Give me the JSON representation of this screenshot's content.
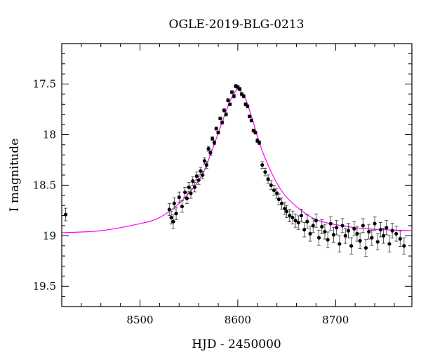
{
  "chart_data": {
    "type": "scatter",
    "title": "OGLE-2019-BLG-0213",
    "xlabel": "HJD - 2450000",
    "ylabel": "I magnitude",
    "xlim": [
      8420,
      8778
    ],
    "ylim": [
      19.7,
      17.1
    ],
    "y_inverted": true,
    "x_ticks": [
      8500,
      8600,
      8700
    ],
    "x_tick_labels": [
      "8500",
      "8600",
      "8700"
    ],
    "y_ticks": [
      17.5,
      18,
      18.5,
      19,
      19.5
    ],
    "y_tick_labels": [
      "17.5",
      "18",
      "18.5",
      "19",
      "19.5"
    ],
    "grid": false,
    "legend": "none",
    "colors": {
      "points": "#000000",
      "model": "#ff00ff",
      "frame": "#000000"
    },
    "model_curve": {
      "name": "",
      "type": "line",
      "x": [
        8420,
        8460,
        8500,
        8520,
        8540,
        8555,
        8565,
        8575,
        8585,
        8592,
        8597,
        8600,
        8603,
        8608,
        8615,
        8622,
        8630,
        8640,
        8650,
        8665,
        8680,
        8700,
        8730,
        8778
      ],
      "y": [
        18.97,
        18.95,
        18.88,
        18.82,
        18.68,
        18.52,
        18.37,
        18.12,
        17.85,
        17.67,
        17.58,
        17.55,
        17.57,
        17.65,
        17.85,
        18.08,
        18.28,
        18.48,
        18.62,
        18.75,
        18.84,
        18.89,
        18.93,
        18.95
      ]
    },
    "series": [
      {
        "name": "",
        "type": "scatter",
        "x": [
          8424,
          8530,
          8532,
          8534,
          8535,
          8537,
          8540,
          8543,
          8546,
          8548,
          8550,
          8552,
          8554,
          8556,
          8558,
          8560,
          8562,
          8564,
          8566,
          8568,
          8570,
          8572,
          8574,
          8576,
          8578,
          8580,
          8582,
          8584,
          8586,
          8588,
          8590,
          8592,
          8594,
          8596,
          8598,
          8600,
          8602,
          8604,
          8606,
          8608,
          8610,
          8612,
          8614,
          8616,
          8618,
          8620,
          8622,
          8625,
          8628,
          8631,
          8634,
          8637,
          8640,
          8642,
          8645,
          8648,
          8650,
          8653,
          8656,
          8659,
          8662,
          8665,
          8668,
          8671,
          8674,
          8677,
          8680,
          8683,
          8686,
          8689,
          8692,
          8695,
          8698,
          8701,
          8704,
          8707,
          8710,
          8713,
          8716,
          8719,
          8722,
          8725,
          8728,
          8731,
          8734,
          8737,
          8740,
          8743,
          8746,
          8749,
          8752,
          8755,
          8758,
          8762,
          8766,
          8770
        ],
        "y": [
          18.79,
          18.74,
          18.82,
          18.86,
          18.68,
          18.78,
          18.62,
          18.71,
          18.57,
          18.63,
          18.52,
          18.58,
          18.46,
          18.52,
          18.41,
          18.45,
          18.36,
          18.4,
          18.26,
          18.3,
          18.14,
          18.18,
          18.04,
          18.08,
          17.94,
          17.98,
          17.84,
          17.88,
          17.76,
          17.8,
          17.66,
          17.7,
          17.58,
          17.62,
          17.52,
          17.53,
          17.55,
          17.6,
          17.62,
          17.7,
          17.72,
          17.82,
          17.86,
          17.96,
          17.98,
          18.06,
          18.08,
          18.3,
          18.37,
          18.44,
          18.5,
          18.55,
          18.58,
          18.64,
          18.68,
          18.73,
          18.76,
          18.8,
          18.82,
          18.85,
          18.87,
          18.8,
          18.94,
          18.86,
          18.98,
          18.9,
          18.85,
          19.02,
          18.91,
          18.96,
          19.04,
          18.88,
          18.99,
          18.92,
          19.08,
          18.9,
          19.0,
          18.95,
          19.1,
          18.93,
          18.98,
          19.05,
          18.9,
          19.12,
          18.96,
          19.02,
          18.88,
          19.06,
          18.94,
          19.0,
          18.92,
          19.08,
          18.95,
          18.98,
          19.03,
          19.1
        ]
      }
    ]
  }
}
